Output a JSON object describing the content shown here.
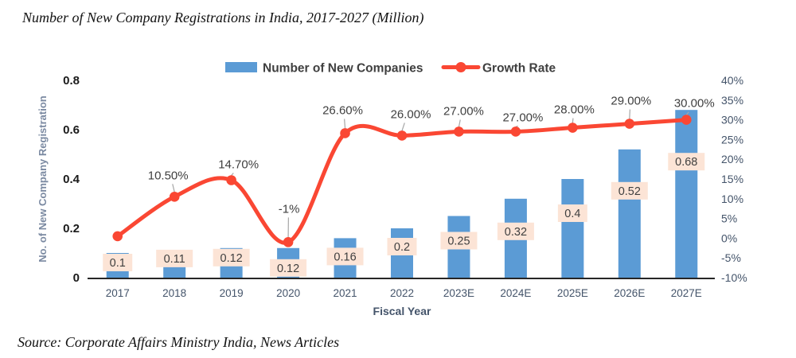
{
  "title": "Number of New Company Registrations in India, 2017-2027 (Million)",
  "source": "Source: Corporate Affairs Ministry India, News Articles",
  "legend": {
    "bars_label": "Number of New Companies",
    "line_label": "Growth Rate"
  },
  "axes": {
    "left_title": "No. of New Company Registration",
    "left_ticks": [
      "0",
      "0.2",
      "0.4",
      "0.6",
      "0.8"
    ],
    "right_ticks": [
      "40%",
      "35%",
      "30%",
      "25%",
      "20%",
      "15%",
      "10%",
      "5%",
      "0%",
      "-5%",
      "-10%"
    ],
    "x_title": "Fiscal Year"
  },
  "colors": {
    "bar_blue": "#5B9BD5",
    "line_red": "#FA4733",
    "label_box_peach": "#FCE4D6",
    "text_dark": "#3F3F3F",
    "axis_text_navy": "#44546A",
    "tick_black": "#1A1A1A",
    "left_title_gray": "#7A89A1",
    "leader_gray": "#A6A6A6",
    "axis_line": "#262626"
  },
  "chart_data": {
    "type": "bar+line combo",
    "title": "Number of New Company Registrations in India, 2017-2027 (Million)",
    "categories": [
      "2017",
      "2018",
      "2019",
      "2020",
      "2021",
      "2022",
      "2023E",
      "2024E",
      "2025E",
      "2026E",
      "2027E"
    ],
    "series": [
      {
        "name": "Number of New Companies",
        "type": "bar",
        "axis": "left",
        "values": [
          0.1,
          0.11,
          0.12,
          0.12,
          0.16,
          0.2,
          0.25,
          0.32,
          0.4,
          0.52,
          0.68
        ],
        "labels": [
          "0.1",
          "0.11",
          "0.12",
          "0.12",
          "0.16",
          "0.2",
          "0.25",
          "0.32",
          "0.4",
          "0.52",
          "0.68"
        ]
      },
      {
        "name": "Growth Rate",
        "type": "line",
        "axis": "right",
        "values_percent": [
          0.5,
          10.5,
          14.7,
          -1,
          26.6,
          26,
          27,
          27,
          28,
          29,
          30
        ],
        "labels": [
          "",
          "10.50%",
          "14.70%",
          "-1%",
          "26.60%",
          "26.00%",
          "27.00%",
          "27.00%",
          "28.00%",
          "29.00%",
          "30.00%"
        ],
        "note_first_point": "2017 marker shown without a data label; value estimated from plot position"
      }
    ],
    "left_axis": {
      "title": "No. of New Company Registration",
      "range": [
        0,
        0.8
      ],
      "tick_step": 0.2
    },
    "right_axis": {
      "range_percent": [
        -10,
        40
      ],
      "tick_step_percent": 5
    },
    "x_label": "Fiscal Year",
    "grid": false,
    "legend_position": "top-center"
  }
}
